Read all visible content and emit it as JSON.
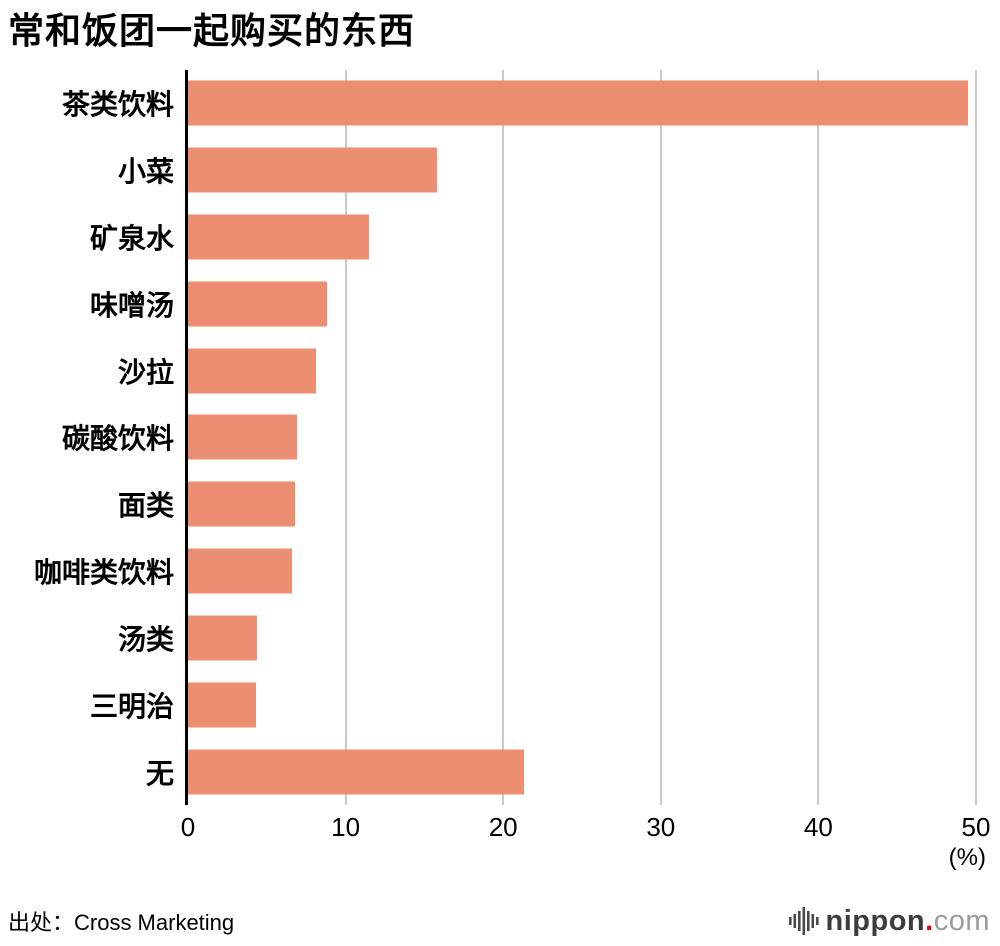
{
  "chart_data": {
    "type": "bar",
    "orientation": "horizontal",
    "title": "常和饭团一起购买的东西",
    "categories": [
      "茶类饮料",
      "小菜",
      "矿泉水",
      "味噌汤",
      "沙拉",
      "碳酸饮料",
      "面类",
      "咖啡类饮料",
      "汤类",
      "三明治",
      "无"
    ],
    "values": [
      49.5,
      15.8,
      11.5,
      8.8,
      8.1,
      6.9,
      6.8,
      6.6,
      4.4,
      4.3,
      21.3
    ],
    "xlabel": "(%)",
    "ylabel": "",
    "xlim": [
      0,
      50
    ],
    "xticks": [
      0,
      10,
      20,
      30,
      40,
      50
    ],
    "grid": true,
    "legend": "none",
    "bar_color": "#EC8E72",
    "gridline_color": "#C9C9C9",
    "axis_color": "#000000"
  },
  "footer": {
    "source": "出处：Cross Marketing",
    "logo": {
      "icon": "soundwave-bars-icon",
      "name": "nippon",
      "dot": ".",
      "tld": "com"
    }
  }
}
